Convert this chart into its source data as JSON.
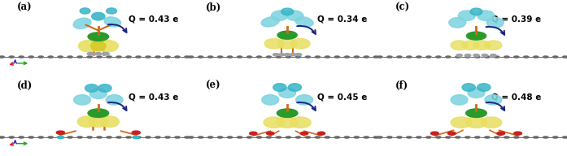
{
  "figure_width": 6.97,
  "figure_height": 1.92,
  "dpi": 100,
  "panels": [
    {
      "label": "(a)",
      "q_value": "Q = 0.43 e",
      "row": 0,
      "col": 0
    },
    {
      "label": "(b)",
      "q_value": "Q = 0.34 e",
      "row": 0,
      "col": 1
    },
    {
      "label": "(c)",
      "q_value": "Q = 0.39 e",
      "row": 0,
      "col": 2
    },
    {
      "label": "(d)",
      "q_value": "Q = 0.43 e",
      "row": 1,
      "col": 0
    },
    {
      "label": "(e)",
      "q_value": "Q = 0.45 e",
      "row": 1,
      "col": 1
    },
    {
      "label": "(f)",
      "q_value": "Q = 0.48 e",
      "row": 1,
      "col": 2
    }
  ],
  "label_fontsize": 8.5,
  "q_fontsize": 7.5,
  "arrow_color": "#1a237e",
  "teal_color": "#3ab5c8",
  "teal_light": "#7fd4e0",
  "yellow_color": "#d4c820",
  "yellow_light": "#e8df60",
  "green_color": "#2a9a2a",
  "orange_color": "#d06818",
  "red_color": "#c82020",
  "gray_atom": "#707070",
  "gray_dark": "#505050",
  "silver_color": "#a0a0a8",
  "axis_red": "#dd2222",
  "axis_blue": "#2222cc",
  "axis_green": "#22aa22"
}
